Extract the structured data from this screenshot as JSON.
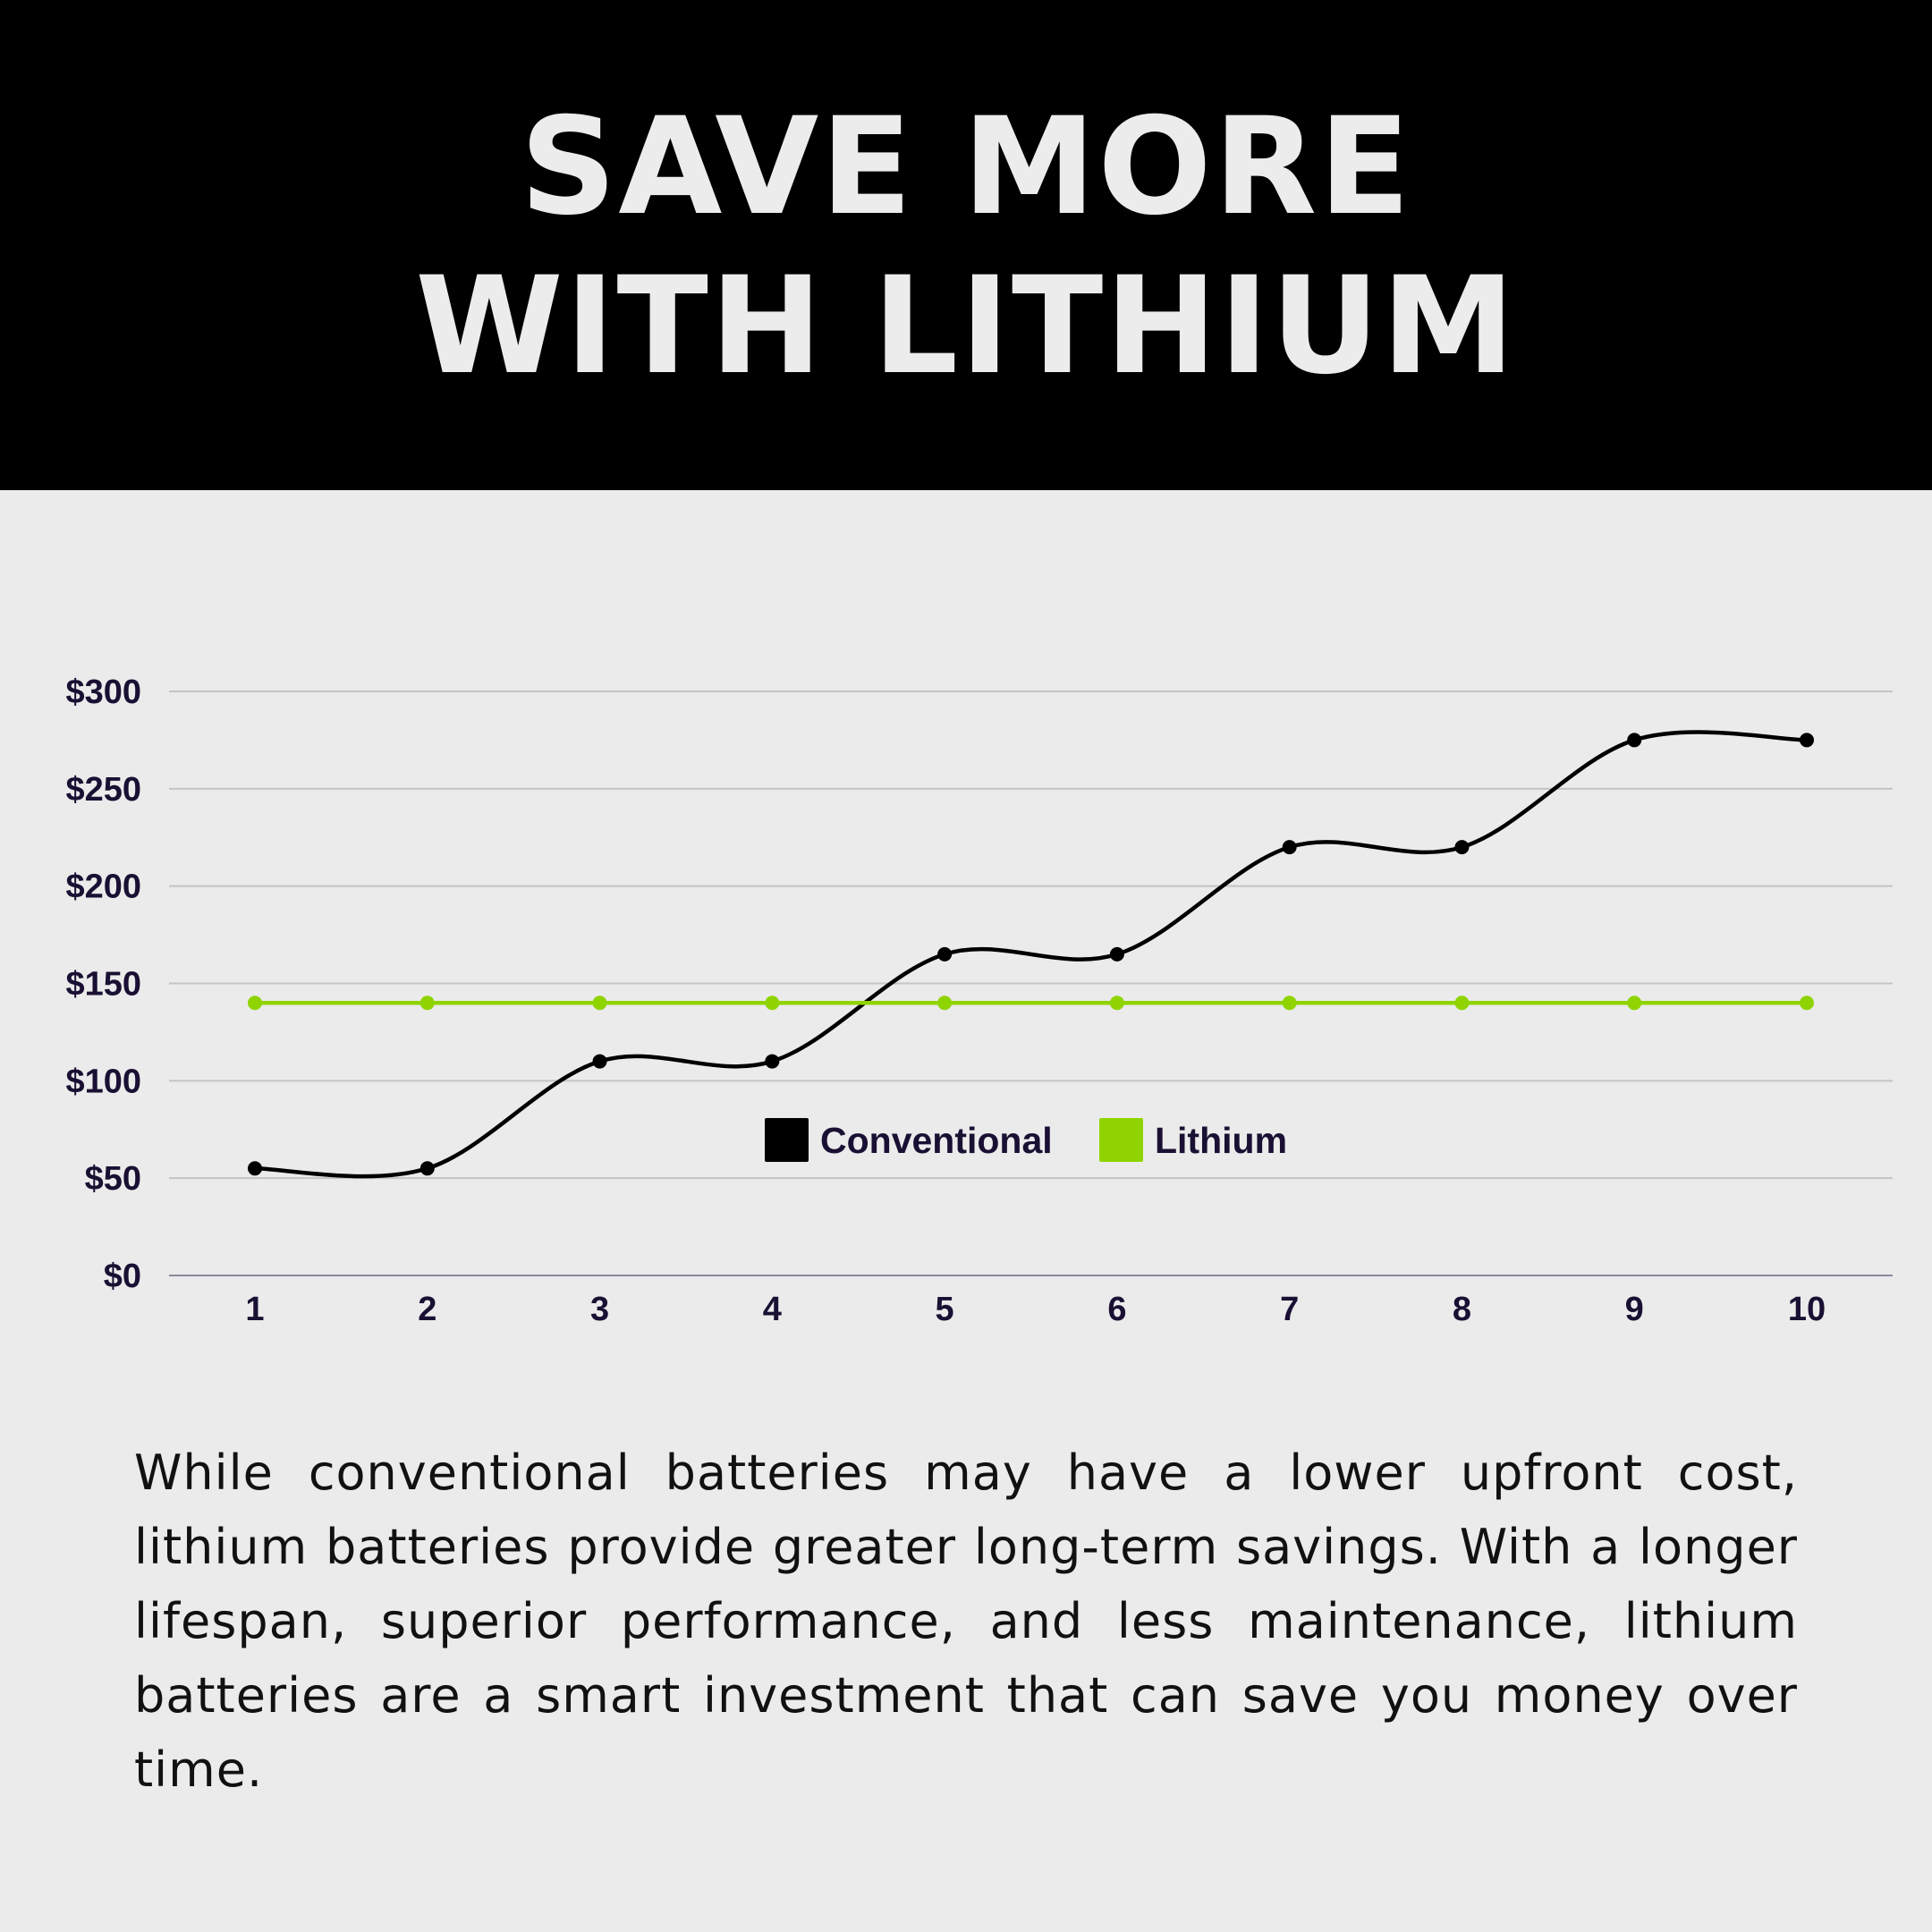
{
  "header": {
    "title_line1": "SAVE MORE",
    "title_line2": "WITH LITHIUM"
  },
  "chart_data": {
    "type": "line",
    "categories": [
      "1",
      "2",
      "3",
      "4",
      "5",
      "6",
      "7",
      "8",
      "9",
      "10"
    ],
    "series": [
      {
        "name": "Conventional",
        "color": "#000000",
        "values": [
          55,
          55,
          110,
          110,
          165,
          165,
          220,
          220,
          275,
          275
        ]
      },
      {
        "name": "Lithium",
        "color": "#8fd400",
        "values": [
          140,
          140,
          140,
          140,
          140,
          140,
          140,
          140,
          140,
          140
        ]
      }
    ],
    "y_ticks": [
      "$0",
      "$50",
      "$100",
      "$150",
      "$200",
      "$250",
      "$300"
    ],
    "ylim": [
      0,
      300
    ],
    "grid": true,
    "legend": "top-center",
    "smooth": true
  },
  "body": {
    "paragraph": "While conventional batteries may have a lower upfront cost, lithium batteries provide greater long-term savings. With a longer lifespan, superior performance, and less maintenance, lithium batteries are a smart investment that can save you money over time."
  }
}
